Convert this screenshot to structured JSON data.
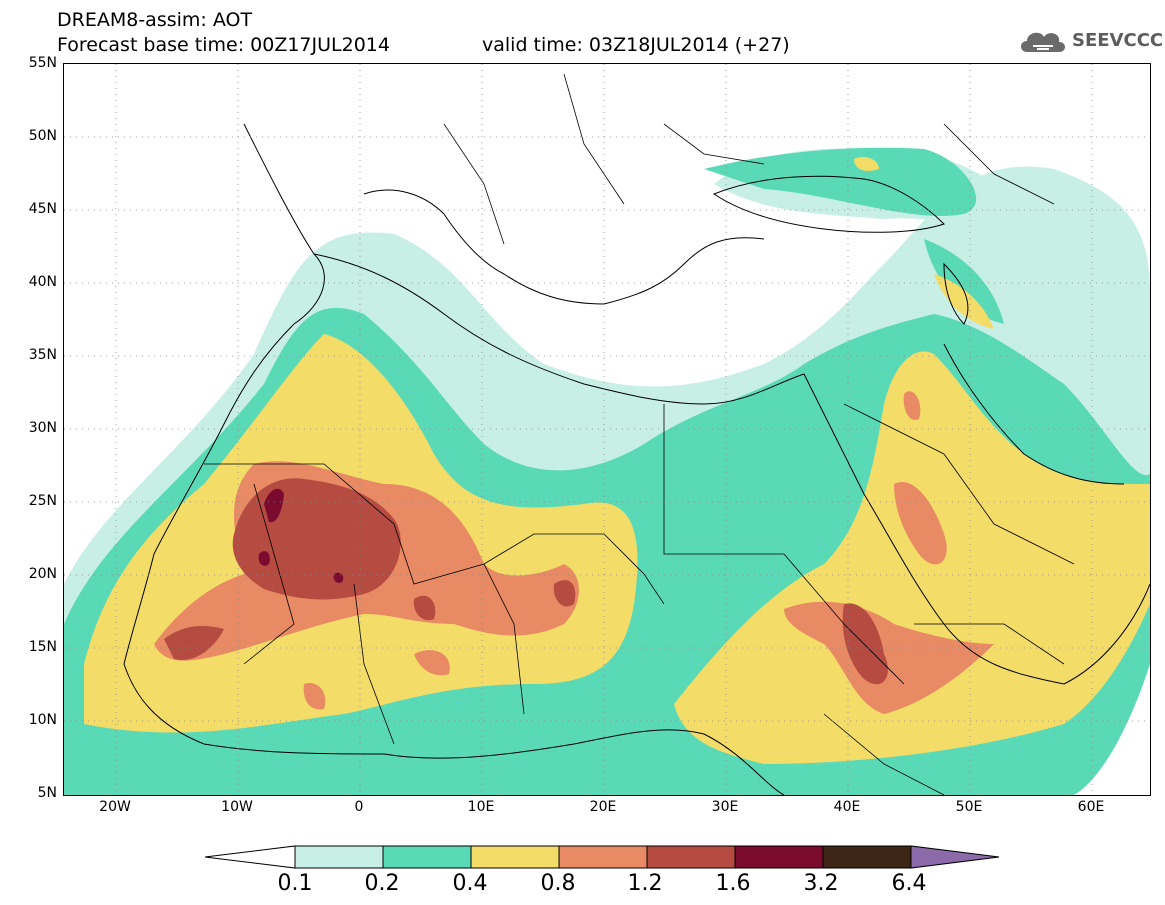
{
  "header": {
    "title_line1": "DREAM8-assim: AOT",
    "title_line2": "Forecast base time: 00Z17JUL2014",
    "valid_time": "valid time: 03Z18JUL2014 (+27)",
    "logo_text": "SEEVCCC"
  },
  "map": {
    "lat_labels": [
      "55N",
      "50N",
      "45N",
      "40N",
      "35N",
      "30N",
      "25N",
      "20N",
      "15N",
      "10N",
      "5N"
    ],
    "lon_labels": [
      "20W",
      "10W",
      "0",
      "10E",
      "20E",
      "30E",
      "40E",
      "50E",
      "60E"
    ]
  },
  "colorbar": {
    "levels": [
      "0.1",
      "0.2",
      "0.4",
      "0.8",
      "1.2",
      "1.6",
      "3.2",
      "6.4"
    ],
    "colors": [
      "#c7efe6",
      "#5ad9b6",
      "#f4dc69",
      "#e88a63",
      "#b64c41",
      "#7a0b2f",
      "#3d2616",
      "#8d6aa9"
    ],
    "under_color": "#ffffff"
  }
}
